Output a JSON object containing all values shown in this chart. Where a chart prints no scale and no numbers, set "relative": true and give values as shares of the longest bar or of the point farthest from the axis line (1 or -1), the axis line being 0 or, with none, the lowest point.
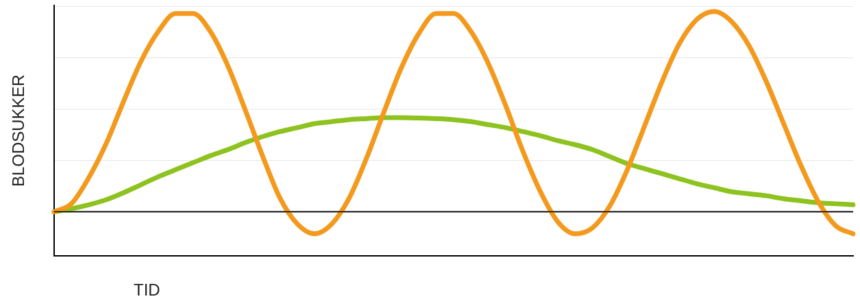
{
  "chart_data": {
    "type": "line",
    "relative": true,
    "xlabel": "TID",
    "ylabel": "BLODSUKKER",
    "grid": "y",
    "legend": false,
    "marker": "none",
    "line_style": "solid",
    "categories": [
      null,
      null,
      null,
      null,
      null,
      null,
      null,
      null,
      null,
      null,
      null,
      null,
      null,
      null,
      null,
      null,
      null,
      null,
      null,
      null,
      null,
      null,
      null,
      null,
      null,
      null,
      null,
      null,
      null,
      null,
      null,
      null,
      null,
      null,
      null,
      null,
      null,
      null,
      null,
      null,
      null,
      null,
      null,
      null,
      null,
      null,
      null
    ],
    "series": [
      {
        "color": "#f39a1e",
        "values": [
          0,
          0.04,
          0.17,
          0.34,
          0.55,
          0.75,
          0.9,
          0.99,
          0.99,
          0.9,
          0.73,
          0.51,
          0.28,
          0.07,
          -0.06,
          -0.11,
          -0.06,
          0.07,
          0.27,
          0.5,
          0.72,
          0.89,
          0.99,
          0.99,
          0.9,
          0.74,
          0.53,
          0.3,
          0.1,
          -0.05,
          -0.11,
          -0.08,
          0.03,
          0.21,
          0.43,
          0.65,
          0.84,
          0.96,
          1,
          0.95,
          0.83,
          0.65,
          0.44,
          0.23,
          0.05,
          -0.07,
          -0.11
        ]
      },
      {
        "color": "#8dc21f",
        "values": [
          0,
          0.015,
          0.035,
          0.06,
          0.095,
          0.135,
          0.175,
          0.21,
          0.245,
          0.28,
          0.31,
          0.345,
          0.375,
          0.4,
          0.42,
          0.44,
          0.45,
          0.46,
          0.465,
          0.47,
          0.47,
          0.468,
          0.465,
          0.46,
          0.45,
          0.435,
          0.42,
          0.4,
          0.38,
          0.355,
          0.335,
          0.31,
          0.275,
          0.24,
          0.215,
          0.19,
          0.165,
          0.14,
          0.12,
          0.1,
          0.09,
          0.08,
          0.065,
          0.055,
          0.045,
          0.04,
          0.035
        ]
      }
    ]
  }
}
